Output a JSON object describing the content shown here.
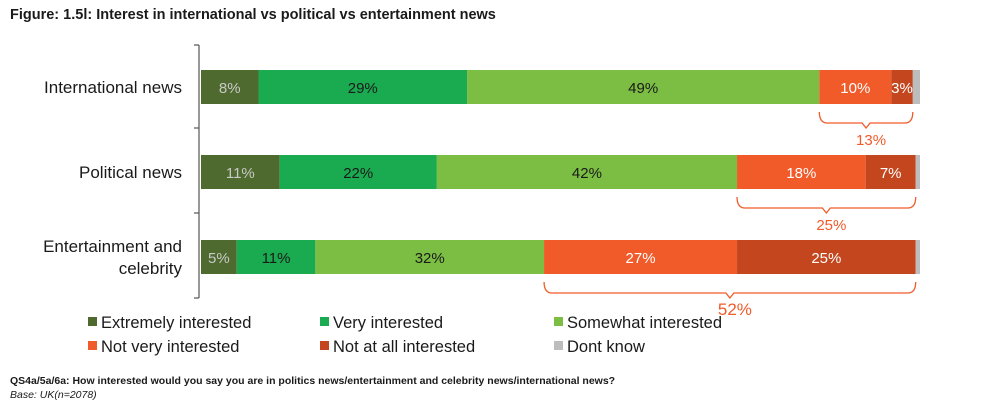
{
  "figure_title": "Figure: 1.5l: Interest in international vs political vs entertainment news",
  "footnote": {
    "question": "QS4a/5a/6a: How interested would you say you are in politics news/entertainment and celebrity news/international news?",
    "base": "Base: UK(n=2078)"
  },
  "chart_data": {
    "type": "bar",
    "orientation": "horizontal",
    "stacked": true,
    "percent_stacked": true,
    "categories": [
      [
        "International news"
      ],
      [
        "Political news"
      ],
      [
        "Entertainment and",
        "celebrity"
      ]
    ],
    "series": [
      {
        "name": "Extremely interested",
        "color": "#4e6a2e",
        "label_color": "#c9c9c9",
        "values": [
          8,
          11,
          5
        ]
      },
      {
        "name": "Very interested",
        "color": "#1aaa50",
        "label_color": "#1a1a1a",
        "values": [
          29,
          22,
          11
        ]
      },
      {
        "name": "Somewhat interested",
        "color": "#7bbe43",
        "label_color": "#1a1a1a",
        "values": [
          49,
          42,
          32
        ]
      },
      {
        "name": "Not very interested",
        "color": "#f15a29",
        "label_color": "#ffffff",
        "values": [
          10,
          18,
          27
        ]
      },
      {
        "name": "Not at all interested",
        "color": "#c3461e",
        "label_color": "#ffffff",
        "values": [
          3,
          7,
          25
        ]
      },
      {
        "name": "Dont know",
        "color": "#bdbdbd",
        "label_color": "#1a1a1a",
        "values": [
          1,
          0.6,
          0.6
        ]
      }
    ],
    "hidden_labels": [
      "Dont know"
    ],
    "bracket_totals": [
      "13%",
      "25%",
      "52%"
    ],
    "bracket_color": "#f15a29",
    "xlim": [
      0,
      100
    ],
    "legend_position": "bottom",
    "grid": false
  }
}
